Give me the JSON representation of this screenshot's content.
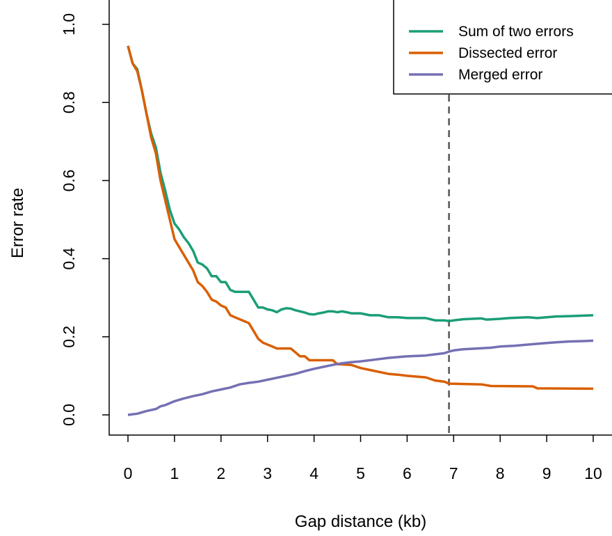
{
  "chart_data": {
    "type": "line",
    "xlabel": "Gap distance (kb)",
    "ylabel": "Error rate",
    "xlim": [
      0,
      10
    ],
    "ylim": [
      0,
      1.0
    ],
    "x_ticks": [
      "0",
      "1",
      "2",
      "3",
      "4",
      "5",
      "6",
      "7",
      "8",
      "9",
      "10"
    ],
    "y_ticks": [
      "0.0",
      "0.2",
      "0.4",
      "0.6",
      "0.8",
      "1.0"
    ],
    "x_tick_values": [
      0,
      1,
      2,
      3,
      4,
      5,
      6,
      7,
      8,
      9,
      10
    ],
    "y_tick_values": [
      0,
      0.2,
      0.4,
      0.6,
      0.8,
      1.0
    ],
    "grid": false,
    "legend_position": "top-right",
    "reference_line": {
      "x": 6.9,
      "style": "dashed",
      "color": "#555555"
    },
    "series": [
      {
        "name": "Sum of two errors",
        "color": "#1b9e77",
        "points": [
          [
            0,
            0.945
          ],
          [
            0.1,
            0.9
          ],
          [
            0.2,
            0.885
          ],
          [
            0.3,
            0.83
          ],
          [
            0.4,
            0.77
          ],
          [
            0.5,
            0.72
          ],
          [
            0.6,
            0.685
          ],
          [
            0.7,
            0.62
          ],
          [
            0.8,
            0.575
          ],
          [
            0.9,
            0.525
          ],
          [
            1.0,
            0.49
          ],
          [
            1.1,
            0.475
          ],
          [
            1.2,
            0.455
          ],
          [
            1.3,
            0.44
          ],
          [
            1.4,
            0.42
          ],
          [
            1.5,
            0.39
          ],
          [
            1.6,
            0.385
          ],
          [
            1.7,
            0.375
          ],
          [
            1.8,
            0.355
          ],
          [
            1.9,
            0.355
          ],
          [
            2.0,
            0.34
          ],
          [
            2.1,
            0.34
          ],
          [
            2.2,
            0.32
          ],
          [
            2.3,
            0.315
          ],
          [
            2.4,
            0.315
          ],
          [
            2.5,
            0.315
          ],
          [
            2.6,
            0.315
          ],
          [
            2.7,
            0.295
          ],
          [
            2.8,
            0.275
          ],
          [
            2.9,
            0.275
          ],
          [
            3.0,
            0.27
          ],
          [
            3.1,
            0.268
          ],
          [
            3.2,
            0.263
          ],
          [
            3.3,
            0.27
          ],
          [
            3.4,
            0.273
          ],
          [
            3.5,
            0.272
          ],
          [
            3.6,
            0.268
          ],
          [
            3.7,
            0.265
          ],
          [
            3.8,
            0.262
          ],
          [
            3.9,
            0.258
          ],
          [
            4.0,
            0.257
          ],
          [
            4.1,
            0.26
          ],
          [
            4.2,
            0.262
          ],
          [
            4.3,
            0.265
          ],
          [
            4.4,
            0.265
          ],
          [
            4.5,
            0.263
          ],
          [
            4.6,
            0.265
          ],
          [
            4.7,
            0.263
          ],
          [
            4.8,
            0.26
          ],
          [
            5.0,
            0.26
          ],
          [
            5.2,
            0.255
          ],
          [
            5.4,
            0.255
          ],
          [
            5.6,
            0.25
          ],
          [
            5.8,
            0.25
          ],
          [
            6.0,
            0.248
          ],
          [
            6.4,
            0.248
          ],
          [
            6.6,
            0.242
          ],
          [
            6.8,
            0.242
          ],
          [
            6.9,
            0.24
          ],
          [
            7.0,
            0.242
          ],
          [
            7.2,
            0.245
          ],
          [
            7.6,
            0.247
          ],
          [
            7.7,
            0.244
          ],
          [
            8.0,
            0.246
          ],
          [
            8.2,
            0.248
          ],
          [
            8.6,
            0.25
          ],
          [
            8.8,
            0.248
          ],
          [
            9.0,
            0.25
          ],
          [
            9.2,
            0.252
          ],
          [
            9.5,
            0.253
          ],
          [
            10,
            0.255
          ]
        ]
      },
      {
        "name": "Dissected error",
        "color": "#d95f02",
        "points": [
          [
            0,
            0.945
          ],
          [
            0.1,
            0.9
          ],
          [
            0.2,
            0.88
          ],
          [
            0.3,
            0.83
          ],
          [
            0.4,
            0.77
          ],
          [
            0.5,
            0.71
          ],
          [
            0.6,
            0.67
          ],
          [
            0.7,
            0.6
          ],
          [
            0.8,
            0.55
          ],
          [
            0.9,
            0.5
          ],
          [
            1.0,
            0.45
          ],
          [
            1.1,
            0.43
          ],
          [
            1.2,
            0.41
          ],
          [
            1.3,
            0.39
          ],
          [
            1.4,
            0.37
          ],
          [
            1.5,
            0.34
          ],
          [
            1.6,
            0.33
          ],
          [
            1.7,
            0.315
          ],
          [
            1.8,
            0.295
          ],
          [
            1.9,
            0.29
          ],
          [
            2.0,
            0.28
          ],
          [
            2.1,
            0.275
          ],
          [
            2.2,
            0.255
          ],
          [
            2.3,
            0.25
          ],
          [
            2.4,
            0.245
          ],
          [
            2.5,
            0.24
          ],
          [
            2.6,
            0.235
          ],
          [
            2.7,
            0.215
          ],
          [
            2.8,
            0.195
          ],
          [
            2.9,
            0.185
          ],
          [
            3.0,
            0.18
          ],
          [
            3.1,
            0.175
          ],
          [
            3.2,
            0.17
          ],
          [
            3.5,
            0.17
          ],
          [
            3.6,
            0.16
          ],
          [
            3.7,
            0.15
          ],
          [
            3.8,
            0.15
          ],
          [
            3.9,
            0.14
          ],
          [
            4.4,
            0.14
          ],
          [
            4.5,
            0.13
          ],
          [
            4.8,
            0.128
          ],
          [
            5.0,
            0.12
          ],
          [
            5.2,
            0.115
          ],
          [
            5.4,
            0.11
          ],
          [
            5.6,
            0.105
          ],
          [
            5.8,
            0.103
          ],
          [
            6.0,
            0.1
          ],
          [
            6.4,
            0.096
          ],
          [
            6.6,
            0.088
          ],
          [
            6.8,
            0.085
          ],
          [
            6.9,
            0.08
          ],
          [
            7.6,
            0.078
          ],
          [
            7.8,
            0.074
          ],
          [
            8.7,
            0.073
          ],
          [
            8.8,
            0.068
          ],
          [
            10,
            0.067
          ]
        ]
      },
      {
        "name": "Merged error",
        "color": "#7570b3",
        "points": [
          [
            0,
            0.0
          ],
          [
            0.2,
            0.003
          ],
          [
            0.4,
            0.01
          ],
          [
            0.6,
            0.015
          ],
          [
            0.7,
            0.022
          ],
          [
            0.8,
            0.025
          ],
          [
            1.0,
            0.035
          ],
          [
            1.2,
            0.042
          ],
          [
            1.4,
            0.048
          ],
          [
            1.6,
            0.053
          ],
          [
            1.8,
            0.06
          ],
          [
            2.0,
            0.065
          ],
          [
            2.2,
            0.07
          ],
          [
            2.4,
            0.078
          ],
          [
            2.6,
            0.082
          ],
          [
            2.8,
            0.085
          ],
          [
            3.0,
            0.09
          ],
          [
            3.2,
            0.095
          ],
          [
            3.4,
            0.1
          ],
          [
            3.6,
            0.105
          ],
          [
            3.8,
            0.112
          ],
          [
            4.0,
            0.118
          ],
          [
            4.2,
            0.123
          ],
          [
            4.4,
            0.128
          ],
          [
            4.6,
            0.132
          ],
          [
            4.8,
            0.135
          ],
          [
            5.0,
            0.137
          ],
          [
            5.2,
            0.14
          ],
          [
            5.4,
            0.143
          ],
          [
            5.6,
            0.146
          ],
          [
            5.8,
            0.148
          ],
          [
            6.0,
            0.15
          ],
          [
            6.4,
            0.152
          ],
          [
            6.6,
            0.155
          ],
          [
            6.8,
            0.158
          ],
          [
            6.9,
            0.162
          ],
          [
            7.0,
            0.165
          ],
          [
            7.2,
            0.168
          ],
          [
            7.5,
            0.17
          ],
          [
            7.8,
            0.172
          ],
          [
            8.0,
            0.175
          ],
          [
            8.3,
            0.177
          ],
          [
            8.6,
            0.18
          ],
          [
            9.0,
            0.184
          ],
          [
            9.2,
            0.186
          ],
          [
            9.5,
            0.188
          ],
          [
            9.8,
            0.189
          ],
          [
            10,
            0.19
          ]
        ]
      }
    ]
  }
}
